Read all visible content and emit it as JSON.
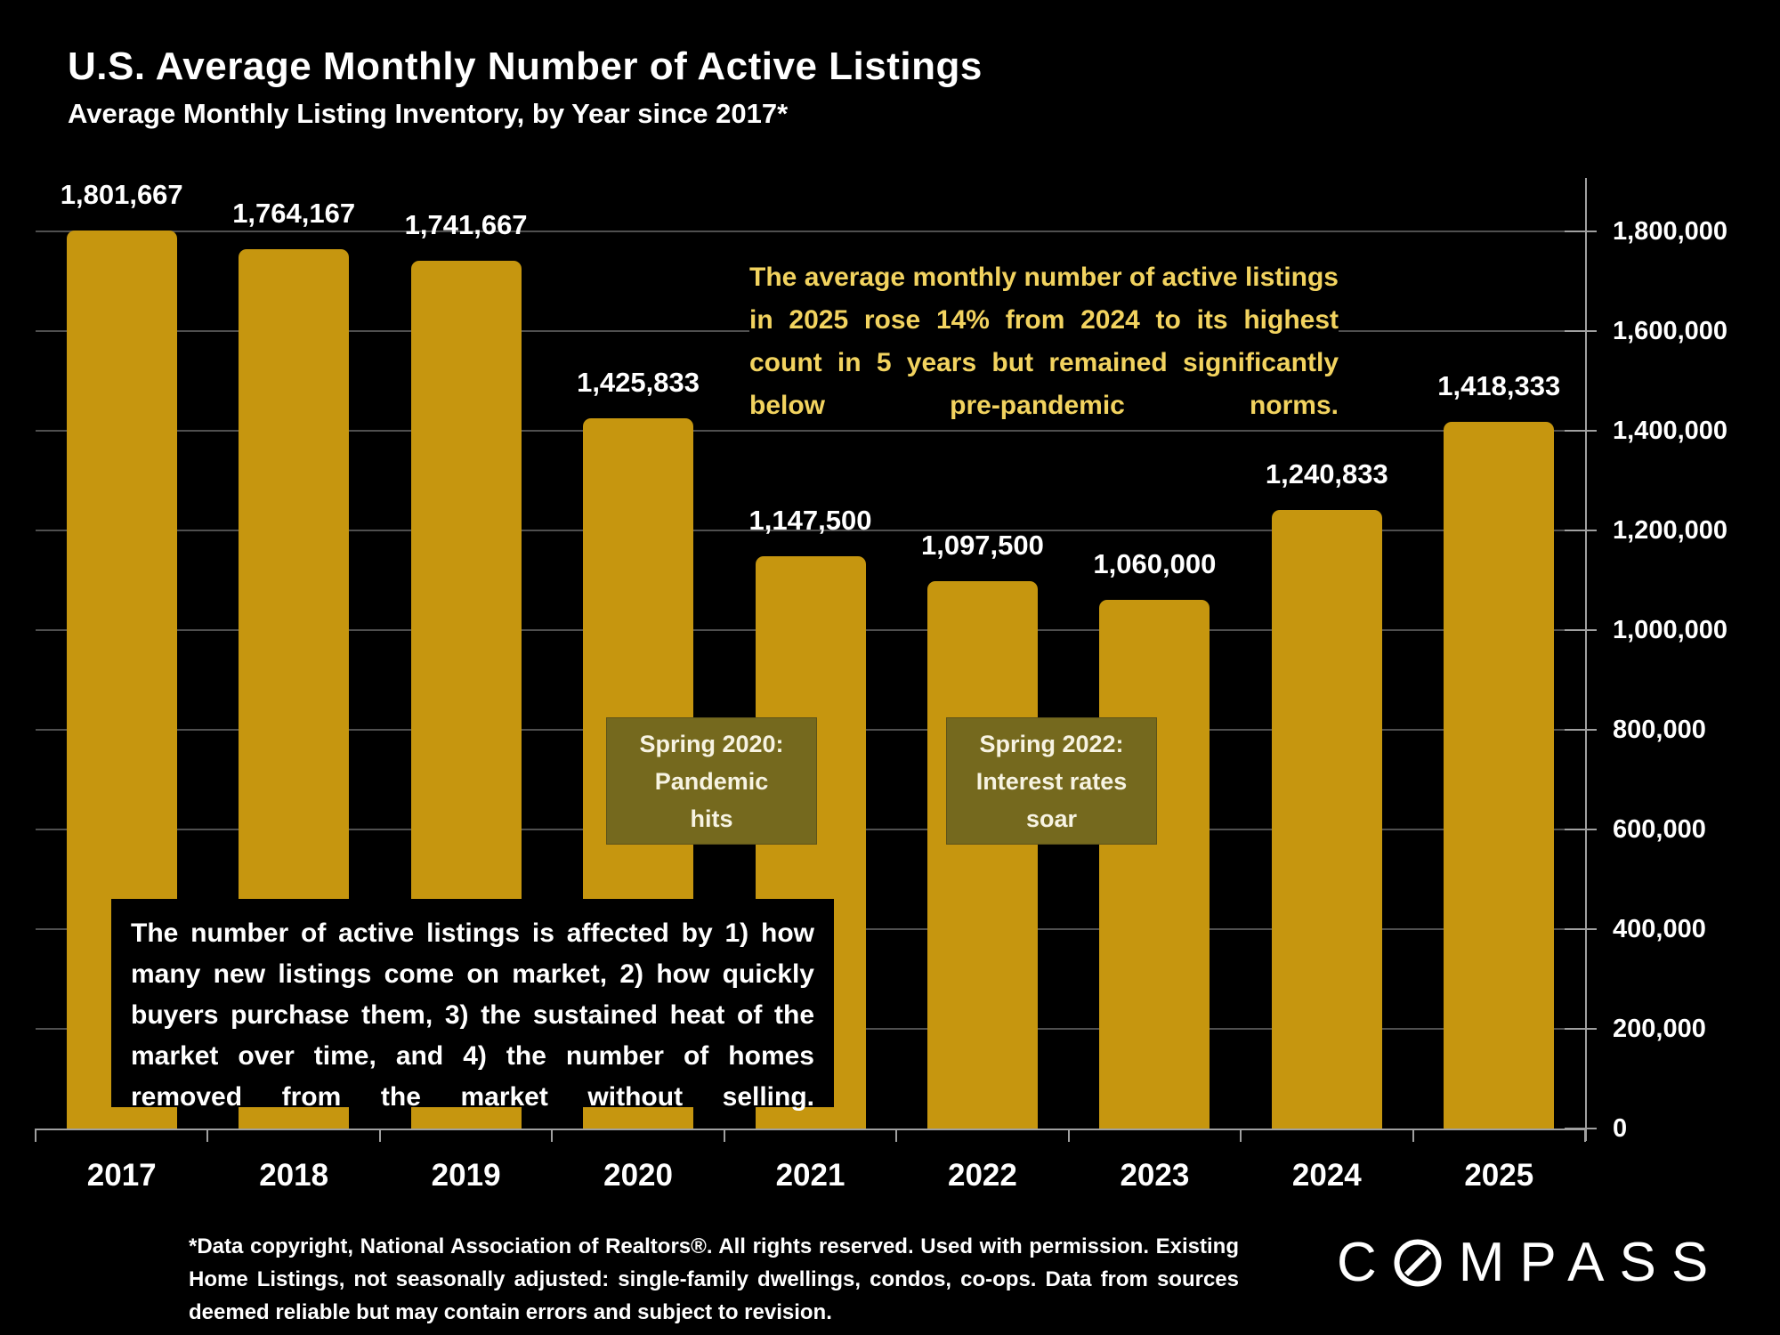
{
  "header": {
    "title": "U.S. Average Monthly Number of Active Listings",
    "subtitle": "Average Monthly Listing Inventory, by Year since 2017*"
  },
  "chart_data": {
    "type": "bar",
    "title": "U.S. Average Monthly Number of Active Listings",
    "xlabel": "",
    "ylabel": "",
    "categories": [
      "2017",
      "2018",
      "2019",
      "2020",
      "2021",
      "2022",
      "2023",
      "2024",
      "2025"
    ],
    "values": [
      1801667,
      1764167,
      1741667,
      1425833,
      1147500,
      1097500,
      1060000,
      1240833,
      1418333
    ],
    "value_labels": [
      "1,801,667",
      "1,764,167",
      "1,741,667",
      "1,425,833",
      "1,147,500",
      "1,097,500",
      "1,060,000",
      "1,240,833",
      "1,418,333"
    ],
    "ylim": [
      0,
      1800000
    ],
    "y_tick_interval": 200000,
    "y_tick_labels_top_to_bottom": [
      "1,800,000",
      "1,600,000",
      "1,400,000",
      "1,200,000",
      "1,000,000",
      "800,000",
      "600,000",
      "400,000",
      "200,000",
      "0"
    ],
    "axis_side": "right",
    "grid": true,
    "legend": false
  },
  "annotations": {
    "highlight": "The average monthly number of active listings in 2025 rose 14% from 2024 to its highest count in 5 years but remained significantly below pre-pandemic norms.",
    "events": [
      {
        "lines": [
          "Spring 2020:",
          "Pandemic",
          "hits"
        ]
      },
      {
        "lines": [
          "Spring 2022:",
          "Interest rates",
          "soar"
        ]
      }
    ],
    "info_box": "The number of active listings is affected by 1) how many new listings come on market, 2) how quickly buyers purchase them, 3) the sustained heat of the market over time, and 4) the number of homes removed from the market without selling."
  },
  "footnote": "*Data copyright, National Association of Realtors®. All rights reserved. Used with permission. Existing Home Listings, not seasonally adjusted:  single-family dwellings, condos, co-ops. Data from sources deemed reliable but may contain errors and subject to revision.",
  "logo": {
    "first": "C",
    "rest": "MPASS"
  },
  "colors": {
    "background": "#000000",
    "bar": "#C6960F",
    "event_box": "#75691E",
    "highlight_text": "#F2D35F",
    "gridline": "#4F4F4F",
    "axis": "#A0A0A0",
    "label_text": "#FFFFFF"
  }
}
